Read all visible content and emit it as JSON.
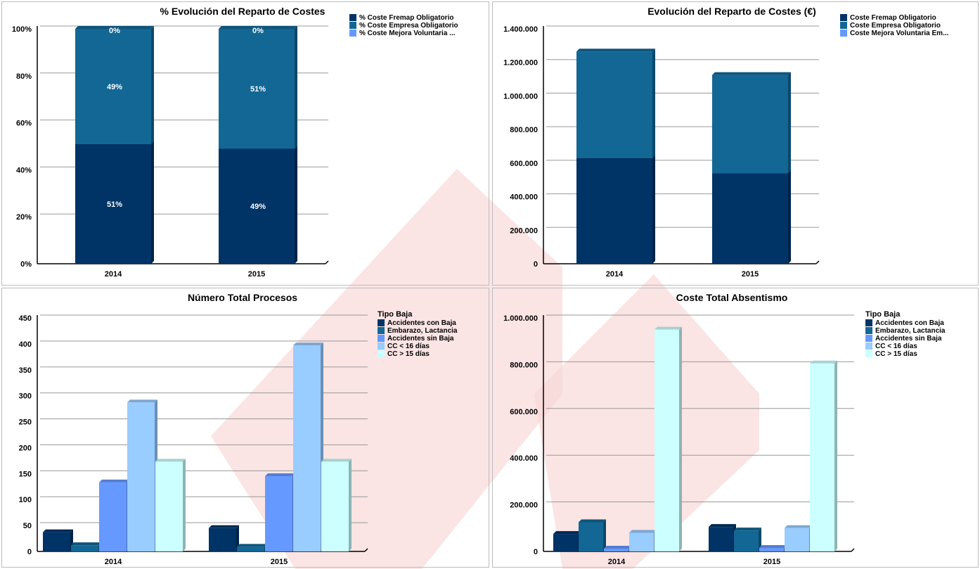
{
  "colors": {
    "c1": "#003366",
    "c2": "#126795",
    "c3": "#6699ff",
    "c4": "#99ccff",
    "c5": "#ccffff",
    "grid": "#999999",
    "watermark": "#f7d6d6"
  },
  "chart_data": [
    {
      "id": "p1",
      "type": "bar",
      "stacked": true,
      "title": "% Evolución del Reparto de Costes",
      "categories": [
        "2014",
        "2015"
      ],
      "ylim": [
        0,
        100
      ],
      "yticks": [
        0,
        20,
        40,
        60,
        80,
        100
      ],
      "ytick_labels": [
        "0%",
        "20%",
        "40%",
        "60%",
        "80%",
        "100%"
      ],
      "legend_title": "",
      "series": [
        {
          "name": "% Coste Fremap Obligatorio",
          "values": [
            51,
            49
          ],
          "labels": [
            "51%",
            "49%"
          ],
          "color": "#003366"
        },
        {
          "name": "% Coste Empresa Obligatorio",
          "values": [
            49,
            51
          ],
          "labels": [
            "49%",
            "51%"
          ],
          "color": "#126795"
        },
        {
          "name": "% Coste Mejora Voluntaria ...",
          "values": [
            0,
            0
          ],
          "labels": [
            "0%",
            "0%"
          ],
          "color": "#6699ff"
        }
      ],
      "grid": true,
      "legend": "right"
    },
    {
      "id": "p2",
      "type": "bar",
      "stacked": true,
      "title": "Evolución del Reparto de Costes (€)",
      "categories": [
        "2014",
        "2015"
      ],
      "ylim": [
        0,
        1400000
      ],
      "yticks": [
        0,
        200000,
        400000,
        600000,
        800000,
        1000000,
        1200000,
        1400000
      ],
      "ytick_labels": [
        "0",
        "200.000",
        "400.000",
        "600.000",
        "800.000",
        "1.000.000",
        "1.200.000",
        "1.400.000"
      ],
      "legend_title": "",
      "series": [
        {
          "name": "Coste Fremap Obligatorio",
          "values": [
            630000,
            540000
          ],
          "color": "#003366"
        },
        {
          "name": "Coste Empresa Obligatorio",
          "values": [
            635000,
            585000
          ],
          "color": "#126795"
        },
        {
          "name": "Coste Mejora Voluntaria Em...",
          "values": [
            0,
            0
          ],
          "color": "#6699ff"
        }
      ],
      "grid": true,
      "legend": "right"
    },
    {
      "id": "p3",
      "type": "bar",
      "stacked": false,
      "title": "Número Total Procesos",
      "categories": [
        "2014",
        "2015"
      ],
      "ylim": [
        0,
        450
      ],
      "yticks": [
        0,
        50,
        100,
        150,
        200,
        250,
        300,
        350,
        400,
        450
      ],
      "ytick_labels": [
        "0",
        "50",
        "100",
        "150",
        "200",
        "250",
        "300",
        "350",
        "400",
        "450"
      ],
      "legend_title": "Tipo Baja",
      "series": [
        {
          "name": "Accidentes con Baja",
          "values": [
            37,
            45
          ],
          "color": "#003366"
        },
        {
          "name": "Embarazo, Lactancia",
          "values": [
            12,
            9
          ],
          "color": "#126795"
        },
        {
          "name": "Accidentes sin Baja",
          "values": [
            133,
            145
          ],
          "color": "#6699ff"
        },
        {
          "name": "CC < 16 días",
          "values": [
            287,
            397
          ],
          "color": "#99ccff"
        },
        {
          "name": "CC > 15 días",
          "values": [
            173,
            173
          ],
          "color": "#ccffff"
        }
      ],
      "grid": true,
      "legend": "right"
    },
    {
      "id": "p4",
      "type": "bar",
      "stacked": false,
      "title": "Coste Total Absentismo",
      "categories": [
        "2014",
        "2015"
      ],
      "ylim": [
        0,
        1000000
      ],
      "yticks": [
        0,
        200000,
        400000,
        600000,
        800000,
        1000000
      ],
      "ytick_labels": [
        "0",
        "200.000",
        "400.000",
        "600.000",
        "800.000",
        "1.000.000"
      ],
      "legend_title": "Tipo Baja",
      "series": [
        {
          "name": "Accidentes con Baja",
          "values": [
            75000,
            105000
          ],
          "color": "#003366"
        },
        {
          "name": "Embarazo, Lactancia",
          "values": [
            125000,
            90000
          ],
          "color": "#126795"
        },
        {
          "name": "Accidentes sin Baja",
          "values": [
            12000,
            15000
          ],
          "color": "#6699ff"
        },
        {
          "name": "CC < 16 días",
          "values": [
            80000,
            100000
          ],
          "color": "#99ccff"
        },
        {
          "name": "CC > 15 días",
          "values": [
            950000,
            805000
          ],
          "color": "#ccffff"
        }
      ],
      "grid": true,
      "legend": "right"
    }
  ]
}
